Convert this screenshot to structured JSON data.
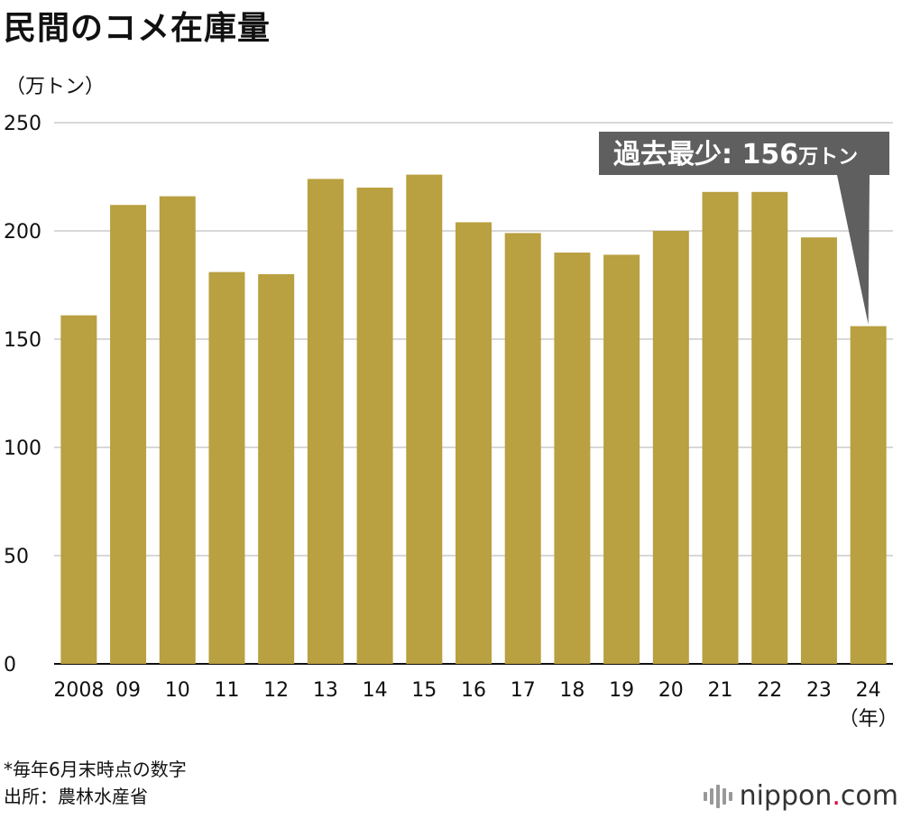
{
  "title": "民間のコメ在庫量",
  "unit_label": "（万トン）",
  "chart_data": {
    "type": "bar",
    "categories": [
      "2008",
      "09",
      "10",
      "11",
      "12",
      "13",
      "14",
      "15",
      "16",
      "17",
      "18",
      "19",
      "20",
      "21",
      "22",
      "23",
      "24"
    ],
    "values": [
      161,
      212,
      216,
      181,
      180,
      224,
      220,
      226,
      204,
      199,
      190,
      189,
      200,
      218,
      218,
      197,
      156
    ],
    "ylim": [
      0,
      250
    ],
    "yticks": [
      0,
      50,
      100,
      150,
      200,
      250
    ],
    "x_suffix": "（年）",
    "grid": true,
    "bar_color": "#b9a040",
    "annotation": {
      "text_main": "過去最少: 156",
      "text_unit": "万トン",
      "target_index": 16
    }
  },
  "footnote": {
    "line1": "*毎年6月末時点の数字",
    "line2": "出所：農林水産省"
  },
  "logo": {
    "name": "nippon",
    "dot": ".",
    "suffix": "com"
  }
}
